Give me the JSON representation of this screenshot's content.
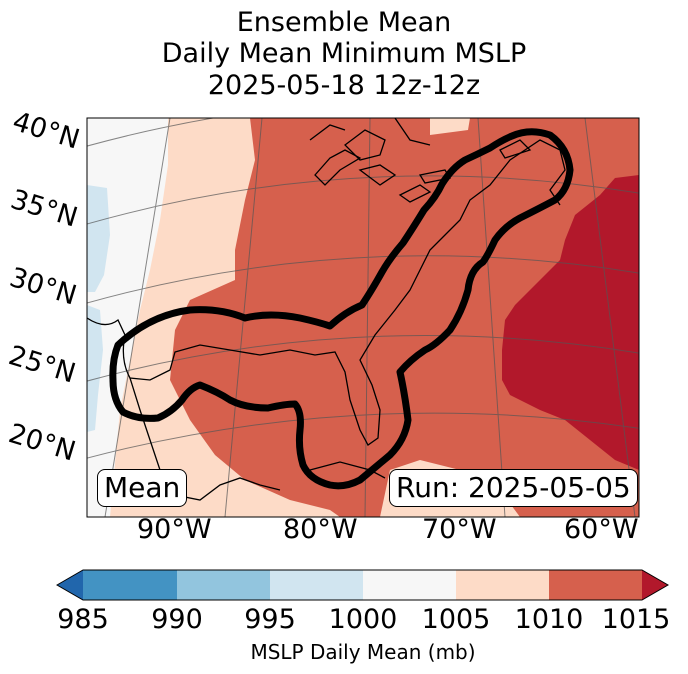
{
  "title": {
    "line1": "Ensemble Mean",
    "line2": "Daily Mean Minimum MSLP",
    "line3": "2025-05-18 12z-12z"
  },
  "map": {
    "lat_labels": [
      "40°N",
      "35°N",
      "30°N",
      "25°N",
      "20°N"
    ],
    "lon_labels": [
      "90°W",
      "80°W",
      "70°W",
      "60°W"
    ],
    "mean_badge": "Mean",
    "run_badge": "Run: 2025-05-05",
    "regions": [
      {
        "name": "far-west-land",
        "level": "1000-1005 mb"
      },
      {
        "name": "western-gulf",
        "level": "1005-1010 mb"
      },
      {
        "name": "eastern-us",
        "level": "1010-1015 mb"
      },
      {
        "name": "central-atlantic",
        "level": ">1015 mb"
      }
    ]
  },
  "colorbar": {
    "ticks": [
      "985",
      "990",
      "995",
      "1000",
      "1005",
      "1010",
      "1015"
    ],
    "label": "MSLP Daily Mean (mb)",
    "bins": [
      {
        "range": "<985",
        "color": "#2166ac"
      },
      {
        "range": "985-990",
        "color": "#4393c3"
      },
      {
        "range": "990-995",
        "color": "#92c5de"
      },
      {
        "range": "995-1000",
        "color": "#d1e5f0"
      },
      {
        "range": "1000-1005",
        "color": "#f7f7f7"
      },
      {
        "range": "1005-1010",
        "color": "#fddbc7"
      },
      {
        "range": "1010-1015",
        "color": "#d6604d"
      },
      {
        "range": ">1015",
        "color": "#b2182b"
      }
    ]
  }
}
